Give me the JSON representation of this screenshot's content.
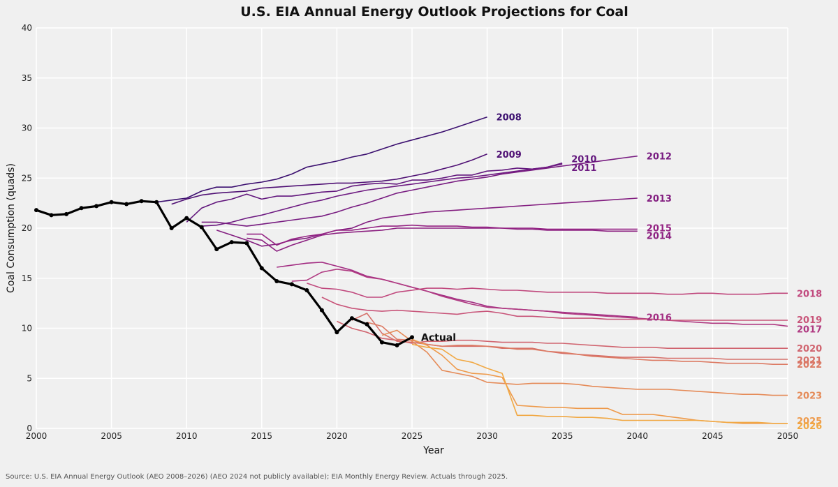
{
  "chart_data": {
    "type": "line",
    "title": "U.S. EIA Annual Energy Outlook Projections for Coal",
    "xlabel": "Year",
    "ylabel": "Coal Consumption (quads)",
    "xlim": [
      2000,
      2050
    ],
    "ylim": [
      0,
      40
    ],
    "x_ticks": [
      2000,
      2005,
      2010,
      2015,
      2020,
      2025,
      2030,
      2035,
      2040,
      2045,
      2050
    ],
    "y_ticks": [
      0,
      5,
      10,
      15,
      20,
      25,
      30,
      35,
      40
    ],
    "grid": true,
    "source_note": "Source: U.S. EIA Annual Energy Outlook (AEO 2008–2026) (AEO 2024 not publicly available); EIA Monthly Energy Review. Actuals through 2025.",
    "actual": {
      "name": "Actual",
      "color": "#000000",
      "x": [
        2000,
        2001,
        2002,
        2003,
        2004,
        2005,
        2006,
        2007,
        2008,
        2009,
        2010,
        2011,
        2012,
        2013,
        2014,
        2015,
        2016,
        2017,
        2018,
        2019,
        2020,
        2021,
        2022,
        2023,
        2024,
        2025
      ],
      "values": [
        21.8,
        21.3,
        21.4,
        22.0,
        22.2,
        22.6,
        22.4,
        22.7,
        22.6,
        20.0,
        21.0,
        20.1,
        17.9,
        18.6,
        18.5,
        16.0,
        14.7,
        14.4,
        13.8,
        11.8,
        9.6,
        11.0,
        10.4,
        8.6,
        8.3,
        9.1
      ]
    },
    "series": [
      {
        "name": "2008",
        "color": "#3b0f6f",
        "x": [
          2008,
          2009,
          2010,
          2011,
          2012,
          2013,
          2014,
          2015,
          2016,
          2017,
          2018,
          2019,
          2020,
          2021,
          2022,
          2023,
          2024,
          2025,
          2026,
          2027,
          2028,
          2029,
          2030
        ],
        "values": [
          22.6,
          22.8,
          23.0,
          23.7,
          24.1,
          24.1,
          24.4,
          24.6,
          24.9,
          25.4,
          26.1,
          26.4,
          26.7,
          27.1,
          27.4,
          27.9,
          28.4,
          28.8,
          29.2,
          29.6,
          30.1,
          30.6,
          31.1
        ]
      },
      {
        "name": "2009",
        "color": "#4f1074",
        "x": [
          2009,
          2010,
          2011,
          2012,
          2013,
          2014,
          2015,
          2016,
          2017,
          2018,
          2019,
          2020,
          2021,
          2022,
          2023,
          2024,
          2025,
          2026,
          2027,
          2028,
          2029,
          2030
        ],
        "values": [
          22.4,
          22.9,
          23.3,
          23.5,
          23.6,
          23.7,
          24.0,
          24.1,
          24.2,
          24.3,
          24.4,
          24.5,
          24.5,
          24.6,
          24.7,
          24.9,
          25.2,
          25.5,
          25.9,
          26.3,
          26.8,
          27.4
        ]
      },
      {
        "name": "2010",
        "color": "#62177d",
        "x": [
          2010,
          2011,
          2012,
          2013,
          2014,
          2015,
          2016,
          2017,
          2018,
          2019,
          2020,
          2021,
          2022,
          2023,
          2024,
          2025,
          2026,
          2027,
          2028,
          2029,
          2030,
          2031,
          2032,
          2033,
          2034,
          2035
        ],
        "values": [
          20.6,
          22.0,
          22.6,
          22.9,
          23.4,
          22.9,
          23.2,
          23.2,
          23.4,
          23.6,
          23.7,
          24.2,
          24.4,
          24.5,
          24.4,
          24.8,
          24.8,
          25.0,
          25.3,
          25.3,
          25.7,
          25.8,
          26.0,
          25.9,
          26.1,
          26.5
        ]
      },
      {
        "name": "2011",
        "color": "#6d1a81",
        "x": [
          2011,
          2012,
          2013,
          2014,
          2015,
          2016,
          2017,
          2018,
          2019,
          2020,
          2021,
          2022,
          2023,
          2024,
          2025,
          2026,
          2027,
          2028,
          2029,
          2030,
          2031,
          2032,
          2033,
          2034,
          2035
        ],
        "values": [
          20.2,
          20.3,
          20.6,
          21.0,
          21.3,
          21.7,
          22.1,
          22.5,
          22.8,
          23.2,
          23.5,
          23.8,
          24.0,
          24.2,
          24.4,
          24.6,
          24.8,
          25.0,
          25.1,
          25.3,
          25.5,
          25.7,
          25.9,
          26.1,
          26.4
        ]
      },
      {
        "name": "2012",
        "color": "#781c81",
        "x": [
          2011,
          2012,
          2013,
          2014,
          2015,
          2016,
          2017,
          2018,
          2019,
          2020,
          2021,
          2022,
          2023,
          2024,
          2025,
          2026,
          2027,
          2028,
          2029,
          2030,
          2031,
          2032,
          2033,
          2034,
          2035,
          2036,
          2037,
          2038,
          2039,
          2040
        ],
        "values": [
          20.6,
          20.6,
          20.4,
          20.2,
          20.4,
          20.6,
          20.8,
          21.0,
          21.2,
          21.6,
          22.1,
          22.5,
          23.0,
          23.5,
          23.8,
          24.1,
          24.4,
          24.7,
          24.9,
          25.1,
          25.4,
          25.6,
          25.8,
          26.0,
          26.2,
          26.4,
          26.6,
          26.8,
          27.0,
          27.2
        ]
      },
      {
        "name": "2013",
        "color": "#831e80",
        "x": [
          2012,
          2013,
          2014,
          2015,
          2016,
          2017,
          2018,
          2019,
          2020,
          2021,
          2022,
          2023,
          2024,
          2025,
          2026,
          2027,
          2028,
          2029,
          2030,
          2031,
          2032,
          2033,
          2034,
          2035,
          2036,
          2037,
          2038,
          2039,
          2040
        ],
        "values": [
          19.8,
          19.3,
          18.8,
          18.2,
          18.4,
          18.8,
          19.0,
          19.4,
          19.8,
          20.0,
          20.6,
          21.0,
          21.2,
          21.4,
          21.6,
          21.7,
          21.8,
          21.9,
          22.0,
          22.1,
          22.2,
          22.3,
          22.4,
          22.5,
          22.6,
          22.7,
          22.8,
          22.9,
          23.0
        ]
      },
      {
        "name": "2014",
        "color": "#8c2181",
        "x": [
          2014,
          2015,
          2016,
          2017,
          2018,
          2019,
          2020,
          2021,
          2022,
          2023,
          2024,
          2025,
          2026,
          2027,
          2028,
          2029,
          2030,
          2031,
          2032,
          2033,
          2034,
          2035,
          2036,
          2037,
          2038,
          2039,
          2040
        ],
        "values": [
          19.0,
          18.8,
          17.7,
          18.3,
          18.8,
          19.3,
          19.5,
          19.6,
          19.7,
          19.8,
          20.0,
          20.0,
          20.0,
          20.0,
          20.0,
          20.0,
          20.0,
          20.0,
          19.9,
          19.9,
          19.8,
          19.8,
          19.8,
          19.8,
          19.7,
          19.7,
          19.7
        ]
      },
      {
        "name": "2015",
        "color": "#942383",
        "x": [
          2014,
          2015,
          2016,
          2017,
          2018,
          2019,
          2020,
          2021,
          2022,
          2023,
          2024,
          2025,
          2026,
          2027,
          2028,
          2029,
          2030,
          2031,
          2032,
          2033,
          2034,
          2035,
          2036,
          2037,
          2038,
          2039,
          2040
        ],
        "values": [
          19.4,
          19.4,
          18.3,
          18.9,
          19.2,
          19.4,
          19.8,
          19.8,
          20.0,
          20.2,
          20.2,
          20.3,
          20.2,
          20.2,
          20.2,
          20.1,
          20.1,
          20.0,
          20.0,
          20.0,
          19.9,
          19.9,
          19.9,
          19.9,
          19.9,
          19.9,
          19.9
        ]
      },
      {
        "name": "2016",
        "color": "#a32e83",
        "x": [
          2016,
          2017,
          2018,
          2019,
          2020,
          2021,
          2022,
          2023,
          2024,
          2025,
          2026,
          2027,
          2028,
          2029,
          2030,
          2031,
          2032,
          2033,
          2034,
          2035,
          2036,
          2037,
          2038,
          2039,
          2040
        ],
        "values": [
          16.1,
          16.3,
          16.5,
          16.6,
          16.2,
          15.8,
          15.2,
          14.9,
          14.5,
          14.1,
          13.7,
          13.3,
          12.9,
          12.6,
          12.2,
          12.0,
          11.9,
          11.8,
          11.7,
          11.6,
          11.5,
          11.4,
          11.3,
          11.2,
          11.1
        ]
      },
      {
        "name": "2017",
        "color": "#b03a82",
        "x": [
          2017,
          2018,
          2019,
          2020,
          2021,
          2022,
          2023,
          2024,
          2025,
          2026,
          2027,
          2028,
          2029,
          2030,
          2031,
          2032,
          2033,
          2034,
          2035,
          2036,
          2037,
          2038,
          2039,
          2040,
          2041,
          2042,
          2043,
          2044,
          2045,
          2046,
          2047,
          2048,
          2049,
          2050
        ],
        "values": [
          14.7,
          14.8,
          15.6,
          15.9,
          15.7,
          15.1,
          14.9,
          14.5,
          14.1,
          13.7,
          13.2,
          12.8,
          12.4,
          12.1,
          12.0,
          11.9,
          11.8,
          11.7,
          11.5,
          11.4,
          11.3,
          11.2,
          11.1,
          11.0,
          10.9,
          10.8,
          10.7,
          10.6,
          10.5,
          10.5,
          10.4,
          10.4,
          10.4,
          10.2
        ]
      },
      {
        "name": "2018",
        "color": "#c0487d",
        "x": [
          2018,
          2019,
          2020,
          2021,
          2022,
          2023,
          2024,
          2025,
          2026,
          2027,
          2028,
          2029,
          2030,
          2031,
          2032,
          2033,
          2034,
          2035,
          2036,
          2037,
          2038,
          2039,
          2040,
          2041,
          2042,
          2043,
          2044,
          2045,
          2046,
          2047,
          2048,
          2049,
          2050
        ],
        "values": [
          14.5,
          14.0,
          13.9,
          13.6,
          13.1,
          13.1,
          13.6,
          13.8,
          14.0,
          14.0,
          13.9,
          14.0,
          13.9,
          13.8,
          13.8,
          13.7,
          13.6,
          13.6,
          13.6,
          13.6,
          13.5,
          13.5,
          13.5,
          13.5,
          13.4,
          13.4,
          13.5,
          13.5,
          13.4,
          13.4,
          13.4,
          13.5,
          13.5
        ]
      },
      {
        "name": "2019",
        "color": "#c85479",
        "x": [
          2019,
          2020,
          2021,
          2022,
          2023,
          2024,
          2025,
          2026,
          2027,
          2028,
          2029,
          2030,
          2031,
          2032,
          2033,
          2034,
          2035,
          2036,
          2037,
          2038,
          2039,
          2040,
          2041,
          2042,
          2043,
          2044,
          2045,
          2046,
          2047,
          2048,
          2049,
          2050
        ],
        "values": [
          13.1,
          12.4,
          12.0,
          11.8,
          11.7,
          11.8,
          11.7,
          11.6,
          11.5,
          11.4,
          11.6,
          11.7,
          11.5,
          11.2,
          11.2,
          11.1,
          11.0,
          11.0,
          11.0,
          10.9,
          10.9,
          10.9,
          10.9,
          10.8,
          10.8,
          10.8,
          10.8,
          10.8,
          10.8,
          10.8,
          10.8,
          10.8
        ]
      },
      {
        "name": "2020",
        "color": "#d0646f",
        "x": [
          2020,
          2021,
          2022,
          2023,
          2024,
          2025,
          2026,
          2027,
          2028,
          2029,
          2030,
          2031,
          2032,
          2033,
          2034,
          2035,
          2036,
          2037,
          2038,
          2039,
          2040,
          2041,
          2042,
          2043,
          2044,
          2045,
          2046,
          2047,
          2048,
          2049,
          2050
        ],
        "values": [
          10.7,
          10.0,
          9.6,
          9.0,
          8.8,
          8.5,
          8.7,
          8.7,
          8.8,
          8.8,
          8.7,
          8.6,
          8.6,
          8.6,
          8.5,
          8.5,
          8.4,
          8.3,
          8.2,
          8.1,
          8.1,
          8.1,
          8.0,
          8.0,
          8.0,
          8.0,
          8.0,
          8.0,
          8.0,
          8.0,
          8.0
        ]
      },
      {
        "name": "2021",
        "color": "#d6706a",
        "x": [
          2021,
          2022,
          2023,
          2024,
          2025,
          2026,
          2027,
          2028,
          2029,
          2030,
          2031,
          2032,
          2033,
          2034,
          2035,
          2036,
          2037,
          2038,
          2039,
          2040,
          2041,
          2042,
          2043,
          2044,
          2045,
          2046,
          2047,
          2048,
          2049,
          2050
        ],
        "values": [
          10.8,
          11.5,
          9.5,
          8.7,
          8.6,
          8.4,
          8.2,
          8.2,
          8.2,
          8.2,
          8.0,
          8.0,
          8.0,
          7.7,
          7.5,
          7.4,
          7.3,
          7.2,
          7.1,
          7.1,
          7.1,
          7.0,
          7.0,
          7.0,
          7.0,
          6.9,
          6.9,
          6.9,
          6.9,
          6.9
        ]
      },
      {
        "name": "2022",
        "color": "#dc7a63",
        "x": [
          2022,
          2023,
          2024,
          2025,
          2026,
          2027,
          2028,
          2029,
          2030,
          2031,
          2032,
          2033,
          2034,
          2035,
          2036,
          2037,
          2038,
          2039,
          2040,
          2041,
          2042,
          2043,
          2044,
          2045,
          2046,
          2047,
          2048,
          2049,
          2050
        ],
        "values": [
          10.6,
          10.2,
          8.9,
          8.8,
          8.4,
          8.2,
          8.3,
          8.3,
          8.2,
          8.1,
          7.9,
          7.9,
          7.7,
          7.6,
          7.4,
          7.2,
          7.1,
          7.0,
          6.9,
          6.8,
          6.8,
          6.7,
          6.7,
          6.6,
          6.5,
          6.5,
          6.5,
          6.4,
          6.4
        ]
      },
      {
        "name": "2023",
        "color": "#e58a57",
        "x": [
          2023,
          2024,
          2025,
          2026,
          2027,
          2028,
          2029,
          2030,
          2031,
          2032,
          2033,
          2034,
          2035,
          2036,
          2037,
          2038,
          2039,
          2040,
          2041,
          2042,
          2043,
          2044,
          2045,
          2046,
          2047,
          2048,
          2049,
          2050
        ],
        "values": [
          9.3,
          9.8,
          8.7,
          7.6,
          5.8,
          5.5,
          5.2,
          4.6,
          4.5,
          4.4,
          4.5,
          4.5,
          4.5,
          4.4,
          4.2,
          4.1,
          4.0,
          3.9,
          3.9,
          3.9,
          3.8,
          3.7,
          3.6,
          3.5,
          3.4,
          3.4,
          3.3,
          3.3
        ]
      },
      {
        "name": "2025",
        "color": "#ee9a4b",
        "x": [
          2025,
          2026,
          2027,
          2028,
          2029,
          2030,
          2031,
          2032,
          2033,
          2034,
          2035,
          2036,
          2037,
          2038,
          2039,
          2040,
          2041,
          2042,
          2043,
          2044,
          2045,
          2046,
          2047,
          2048,
          2049,
          2050
        ],
        "values": [
          8.9,
          8.3,
          7.3,
          5.9,
          5.5,
          5.4,
          5.1,
          2.3,
          2.2,
          2.1,
          2.1,
          2.0,
          2.0,
          2.0,
          1.4,
          1.4,
          1.4,
          1.2,
          1.0,
          0.8,
          0.7,
          0.6,
          0.5,
          0.5,
          0.5,
          0.5
        ]
      },
      {
        "name": "2026",
        "color": "#f1a843",
        "x": [
          2025,
          2026,
          2027,
          2028,
          2029,
          2030,
          2031,
          2032,
          2033,
          2034,
          2035,
          2036,
          2037,
          2038,
          2039,
          2040,
          2041,
          2042,
          2043,
          2044,
          2045,
          2046,
          2047,
          2048,
          2049,
          2050
        ],
        "values": [
          8.4,
          8.1,
          7.9,
          6.9,
          6.6,
          6.0,
          5.5,
          1.3,
          1.3,
          1.2,
          1.2,
          1.1,
          1.1,
          1.0,
          0.8,
          0.8,
          0.8,
          0.8,
          0.8,
          0.8,
          0.7,
          0.6,
          0.6,
          0.6,
          0.5,
          0.5
        ]
      }
    ]
  }
}
